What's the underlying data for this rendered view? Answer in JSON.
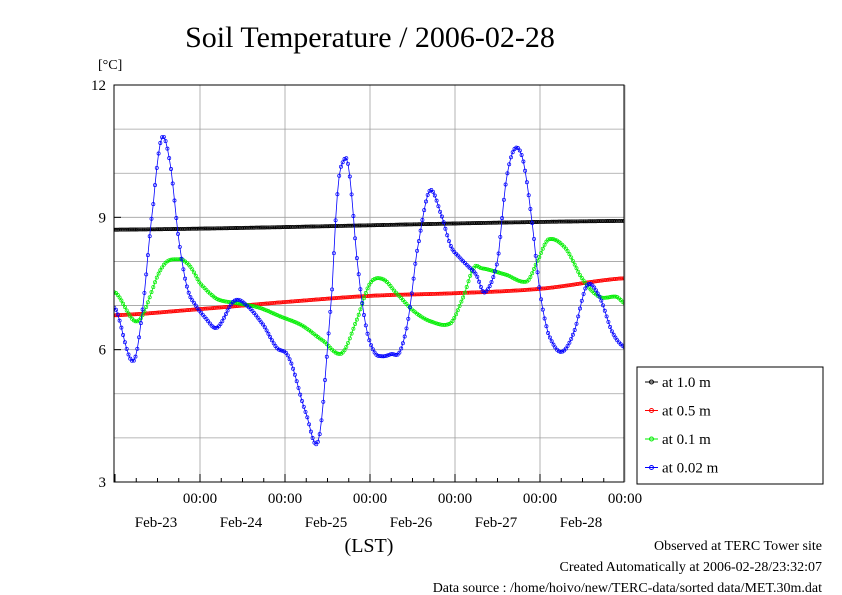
{
  "chart_data": {
    "type": "line",
    "title": "Soil Temperature / 2006-02-28",
    "ylabel": "[°C]",
    "xlabel": "(LST)",
    "ylim": [
      3,
      12
    ],
    "yticks": [
      "3",
      "6",
      "9",
      "12"
    ],
    "xlim": [
      0,
      6
    ],
    "grid": true,
    "legend_position": "right",
    "xticks": [
      {
        "x": 1,
        "time": "00:00",
        "date": "Feb-23"
      },
      {
        "x": 2,
        "time": "00:00",
        "date": "Feb-24"
      },
      {
        "x": 3,
        "time": "00:00",
        "date": "Feb-25"
      },
      {
        "x": 4,
        "time": "00:00",
        "date": "Feb-26"
      },
      {
        "x": 5,
        "time": "00:00",
        "date": "Feb-27"
      },
      {
        "x": 6,
        "time": "00:00",
        "date": "Feb-28"
      }
    ],
    "series": [
      {
        "name": "at 1.0 m",
        "color": "#000000",
        "x": [
          0,
          6
        ],
        "y": [
          8.72,
          8.92
        ]
      },
      {
        "name": "at 0.5 m",
        "color": "#ff0000",
        "x": [
          0,
          1,
          2,
          3,
          4,
          5,
          6
        ],
        "y": [
          6.78,
          6.92,
          7.08,
          7.22,
          7.28,
          7.38,
          7.62
        ]
      },
      {
        "name": "at 0.1 m",
        "color": "#00ee00",
        "x": [
          0,
          0.27,
          0.55,
          0.75,
          0.88,
          1.0,
          1.2,
          1.45,
          1.7,
          1.95,
          2.2,
          2.45,
          2.67,
          2.85,
          3.0,
          3.15,
          3.3,
          3.5,
          3.7,
          3.95,
          4.1,
          4.22,
          4.3,
          4.6,
          4.85,
          4.98,
          5.1,
          5.3,
          5.5,
          5.7,
          5.9,
          6.0
        ],
        "y": [
          7.3,
          6.65,
          7.85,
          8.05,
          7.9,
          7.5,
          7.15,
          7.05,
          6.95,
          6.75,
          6.55,
          6.2,
          5.92,
          6.7,
          7.5,
          7.6,
          7.3,
          6.9,
          6.65,
          6.6,
          7.2,
          7.85,
          7.85,
          7.7,
          7.55,
          8.05,
          8.5,
          8.3,
          7.6,
          7.2,
          7.2,
          7.05
        ]
      },
      {
        "name": "at 0.02 m",
        "color": "#0000ff",
        "x": [
          0,
          0.2,
          0.3,
          0.45,
          0.55,
          0.65,
          0.75,
          0.85,
          0.95,
          1.05,
          1.2,
          1.4,
          1.55,
          1.75,
          1.9,
          2.05,
          2.25,
          2.4,
          2.55,
          2.62,
          2.68,
          2.75,
          2.85,
          2.95,
          3.05,
          3.15,
          3.25,
          3.35,
          3.45,
          3.55,
          3.7,
          3.85,
          3.95,
          4.05,
          4.15,
          4.25,
          4.35,
          4.5,
          4.6,
          4.7,
          4.8,
          4.9,
          5.0,
          5.1,
          5.25,
          5.4,
          5.55,
          5.7,
          5.85,
          6.0
        ],
        "y": [
          6.95,
          5.75,
          6.55,
          9.3,
          10.8,
          10.2,
          8.5,
          7.4,
          7.0,
          6.75,
          6.5,
          7.1,
          7.0,
          6.55,
          6.05,
          5.8,
          4.55,
          4.0,
          7.2,
          9.6,
          10.25,
          10.1,
          8.0,
          6.55,
          5.95,
          5.85,
          5.9,
          5.95,
          6.7,
          8.2,
          9.6,
          9.0,
          8.35,
          8.1,
          7.9,
          7.7,
          7.3,
          8.0,
          9.8,
          10.55,
          10.3,
          9.0,
          7.3,
          6.35,
          5.95,
          6.4,
          7.45,
          7.2,
          6.4,
          6.05
        ]
      }
    ]
  },
  "footer": {
    "line1": "Observed at TERC Tower site",
    "line2": "Created Automatically at 2006-02-28/23:32:07",
    "line3": "Data source : /home/hoivo/new/TERC-data/sorted  data/MET.30m.dat"
  }
}
